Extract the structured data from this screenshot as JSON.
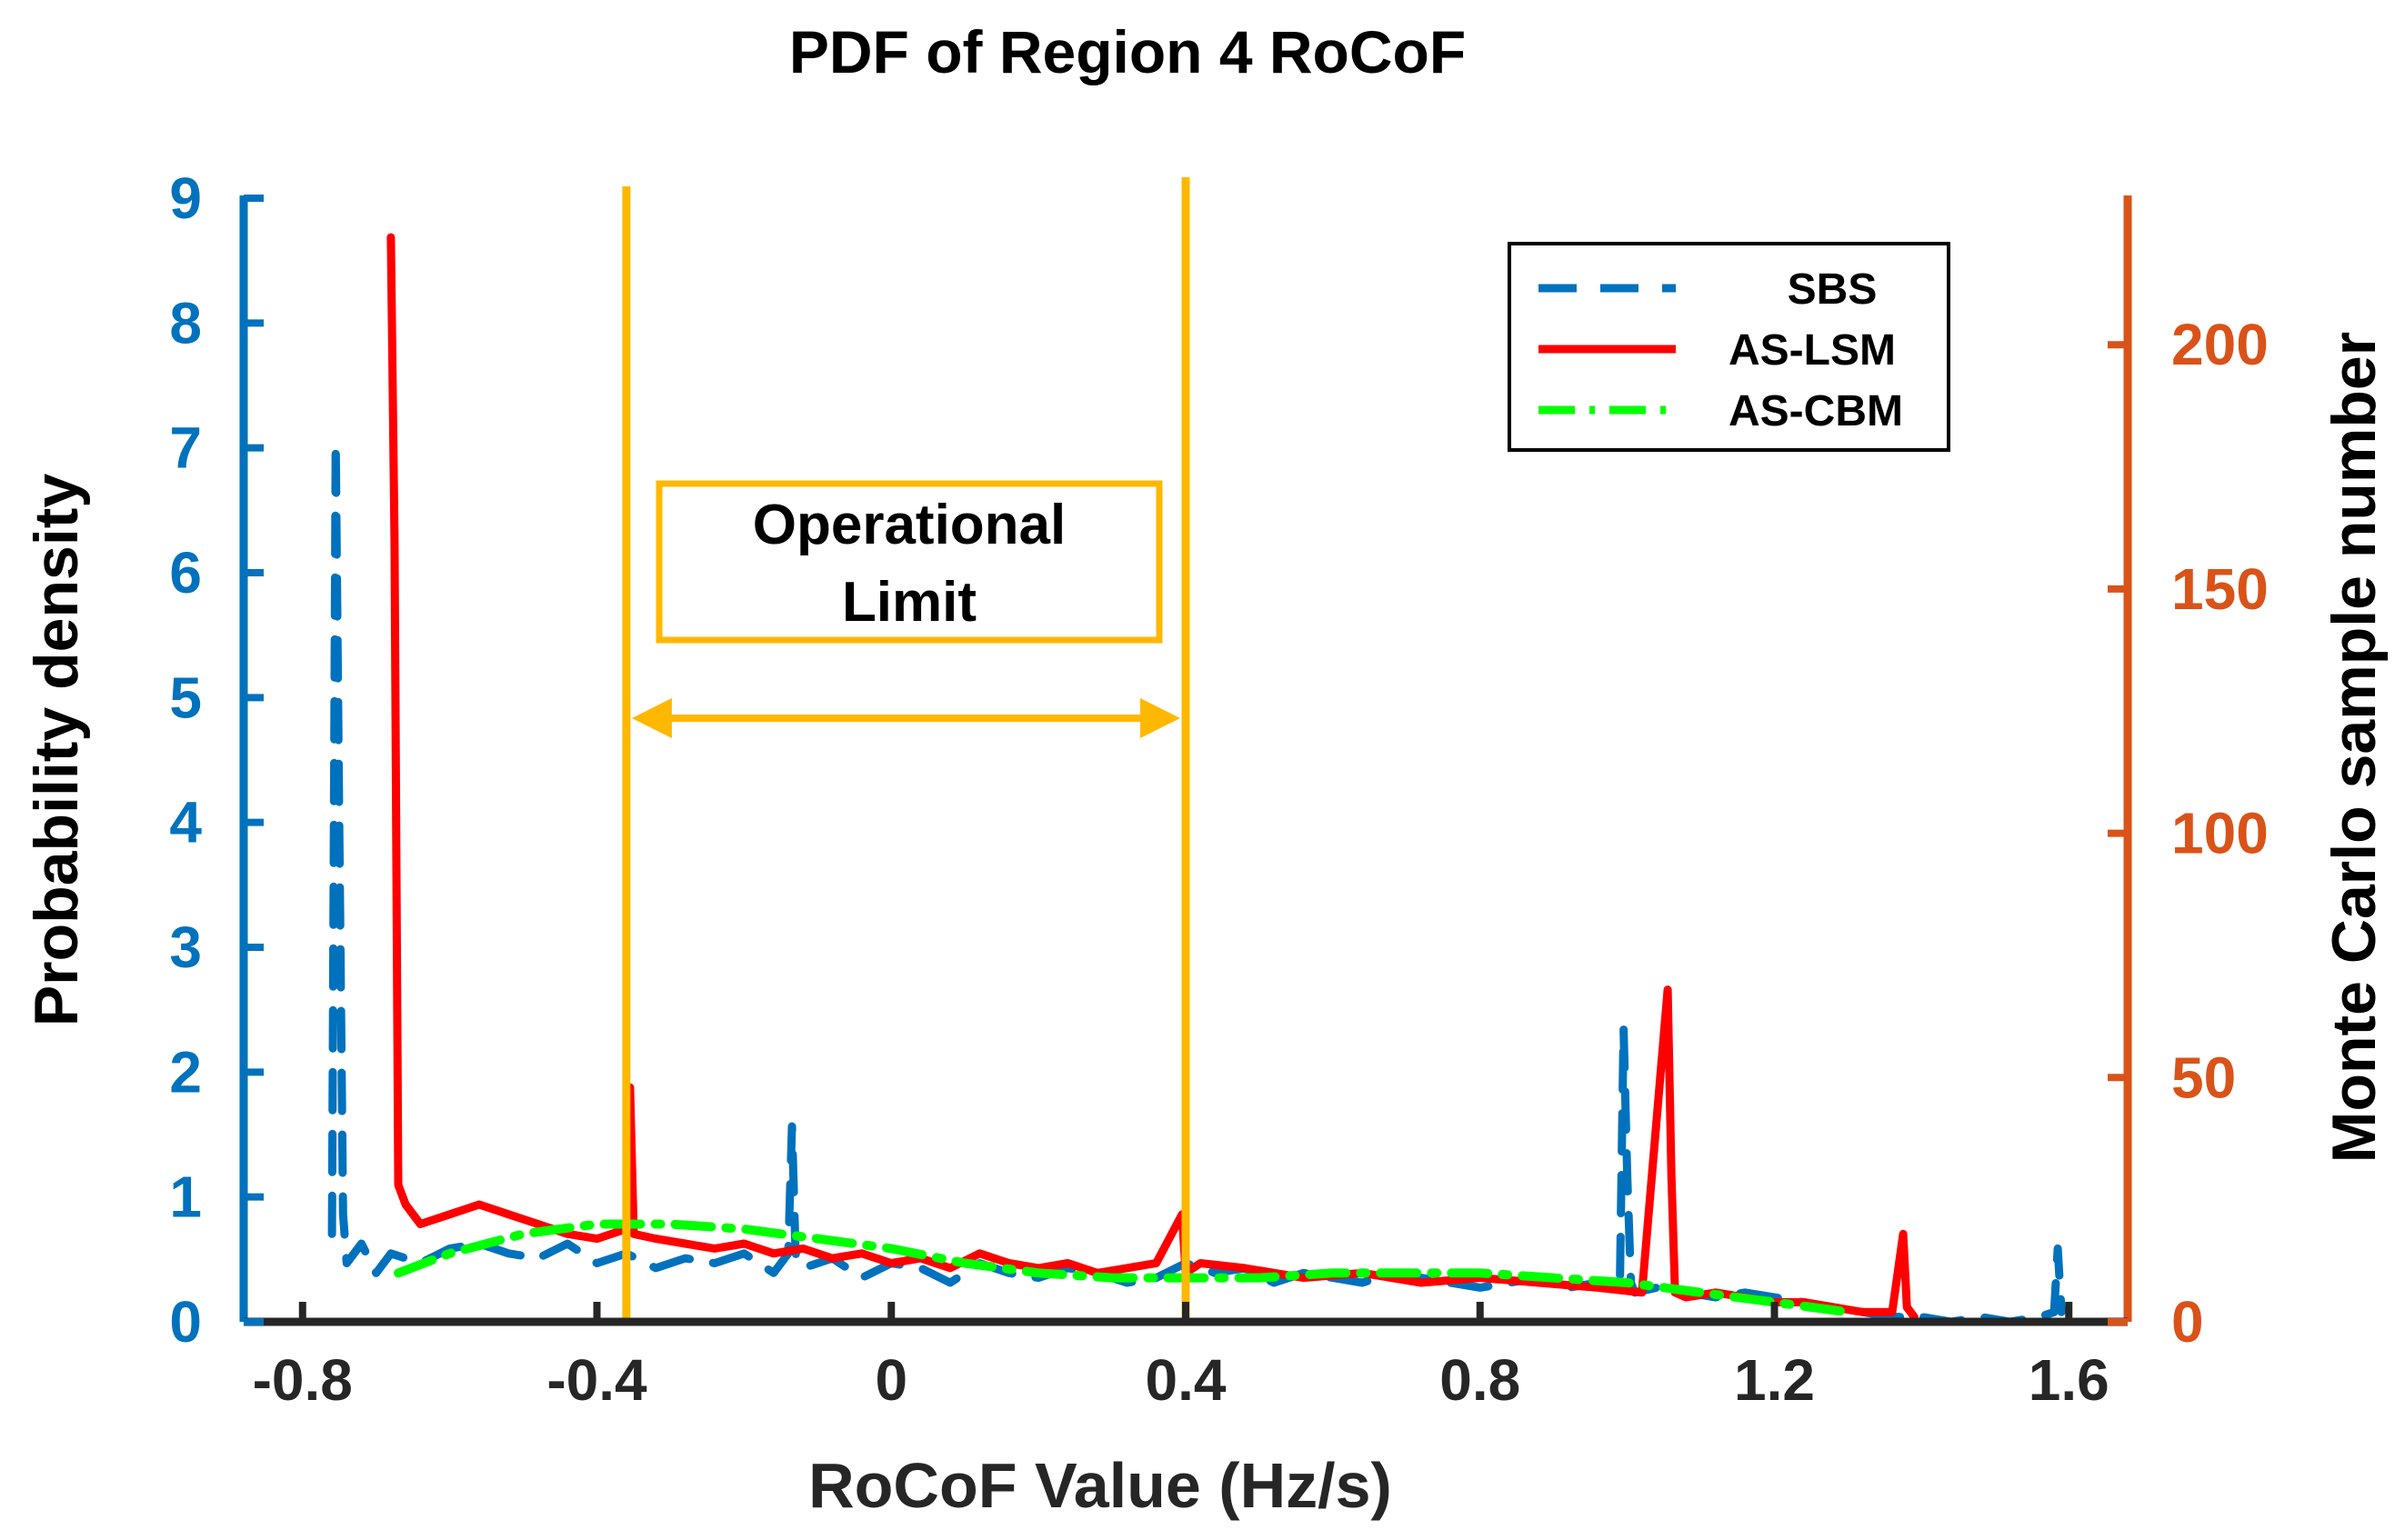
{
  "chart_data": {
    "type": "line",
    "title": "PDF of Region 4 RoCoF",
    "xlabel": "RoCoF Value (Hz/s)",
    "ylabel_left": "Probability density",
    "ylabel_right": "Monte Carlo sample number",
    "xlim": [
      -0.88,
      1.68
    ],
    "ylim_left": [
      0,
      9
    ],
    "ylim_right": [
      0,
      230
    ],
    "x_ticks": [
      -0.8,
      -0.4,
      0,
      0.4,
      0.8,
      1.2,
      1.6
    ],
    "x_tick_labels": [
      "-0.8",
      "-0.4",
      "0",
      "0.4",
      "0.8",
      "1.2",
      "1.6"
    ],
    "y_left_ticks": [
      0,
      1,
      2,
      3,
      4,
      5,
      6,
      7,
      8,
      9
    ],
    "y_left_tick_labels": [
      "0",
      "1",
      "2",
      "3",
      "4",
      "5",
      "6",
      "7",
      "8",
      "9"
    ],
    "y_right_ticks": [
      0,
      50,
      100,
      150,
      200
    ],
    "y_right_tick_labels": [
      "0",
      "50",
      "100",
      "150",
      "200"
    ],
    "legend_position": "top-right",
    "series": [
      {
        "name": "SBS",
        "axis": "right",
        "color": "#0072BD",
        "style": "dashed",
        "x": [
          -0.76,
          -0.755,
          -0.75,
          -0.745,
          -0.74,
          -0.72,
          -0.7,
          -0.68,
          -0.64,
          -0.6,
          -0.56,
          -0.52,
          -0.48,
          -0.44,
          -0.4,
          -0.36,
          -0.32,
          -0.28,
          -0.24,
          -0.2,
          -0.16,
          -0.14,
          -0.135,
          -0.13,
          -0.12,
          -0.08,
          -0.04,
          0,
          0.04,
          0.08,
          0.12,
          0.16,
          0.2,
          0.24,
          0.28,
          0.32,
          0.36,
          0.4,
          0.44,
          0.48,
          0.52,
          0.56,
          0.6,
          0.64,
          0.68,
          0.72,
          0.76,
          0.8,
          0.84,
          0.88,
          0.92,
          0.96,
          0.99,
          0.995,
          1.0,
          1.005,
          1.01,
          1.04,
          1.08,
          1.12,
          1.16,
          1.2,
          1.24,
          1.28,
          1.32,
          1.36,
          1.4,
          1.44,
          1.48,
          1.52,
          1.56,
          1.58,
          1.585,
          1.59
        ],
        "y": [
          18,
          180,
          100,
          22,
          12,
          16,
          10,
          14,
          12,
          15,
          16,
          14,
          13,
          16,
          12,
          14,
          11,
          13,
          12,
          14,
          10,
          14,
          40,
          14,
          11,
          13,
          9,
          12,
          11,
          8,
          12,
          10,
          9,
          11,
          10,
          8,
          9,
          12,
          10,
          11,
          8,
          10,
          9,
          8,
          10,
          9,
          8,
          7,
          8,
          9,
          7,
          8,
          7,
          60,
          30,
          8,
          6,
          7,
          6,
          5,
          6,
          5,
          4,
          3,
          2,
          1,
          1,
          0,
          1,
          0,
          1,
          2,
          15,
          2
        ]
      },
      {
        "name": "AS-LSM",
        "axis": "right",
        "color": "#FF0000",
        "style": "solid",
        "x": [
          -0.68,
          -0.675,
          -0.67,
          -0.66,
          -0.64,
          -0.6,
          -0.56,
          -0.52,
          -0.48,
          -0.44,
          -0.4,
          -0.36,
          -0.355,
          -0.35,
          -0.32,
          -0.28,
          -0.24,
          -0.2,
          -0.16,
          -0.12,
          -0.08,
          -0.04,
          0,
          0.04,
          0.08,
          0.12,
          0.16,
          0.2,
          0.24,
          0.28,
          0.32,
          0.36,
          0.395,
          0.4,
          0.42,
          0.48,
          0.56,
          0.64,
          0.72,
          0.8,
          0.88,
          0.96,
          1.02,
          1.055,
          1.06,
          1.065,
          1.08,
          1.12,
          1.16,
          1.2,
          1.24,
          1.28,
          1.32,
          1.36,
          1.375,
          1.38,
          1.39
        ],
        "y": [
          222,
          160,
          28,
          24,
          20,
          22,
          24,
          22,
          20,
          18,
          17,
          19,
          48,
          18,
          17,
          16,
          15,
          16,
          14,
          15,
          13,
          14,
          12,
          13,
          11,
          14,
          12,
          11,
          12,
          10,
          11,
          12,
          22,
          10,
          12,
          11,
          9,
          10,
          8,
          9,
          8,
          7,
          6,
          68,
          30,
          6,
          5,
          6,
          5,
          4,
          4,
          3,
          2,
          2,
          18,
          3,
          1
        ]
      },
      {
        "name": "AS-CBM",
        "axis": "right",
        "color": "#00FF00",
        "style": "dashdot",
        "x": [
          -0.67,
          -0.6,
          -0.5,
          -0.4,
          -0.3,
          -0.2,
          -0.1,
          0,
          0.1,
          0.2,
          0.3,
          0.4,
          0.5,
          0.6,
          0.7,
          0.8,
          0.9,
          1.0,
          1.1,
          1.2,
          1.3
        ],
        "y": [
          10,
          14,
          18,
          20,
          20,
          19,
          17,
          15,
          12,
          10,
          9,
          9,
          9,
          10,
          10,
          10,
          9,
          8,
          6,
          4,
          2
        ]
      }
    ],
    "annotations": {
      "operational_limit_label_line1": "Operational",
      "operational_limit_label_line2": "Limit",
      "limit_x": [
        -0.36,
        0.4
      ]
    },
    "colors": {
      "left_axis": "#0072BD",
      "right_axis": "#D95319",
      "limit": "#FFB800",
      "text": "#000000",
      "x_axis": "#262626"
    }
  }
}
